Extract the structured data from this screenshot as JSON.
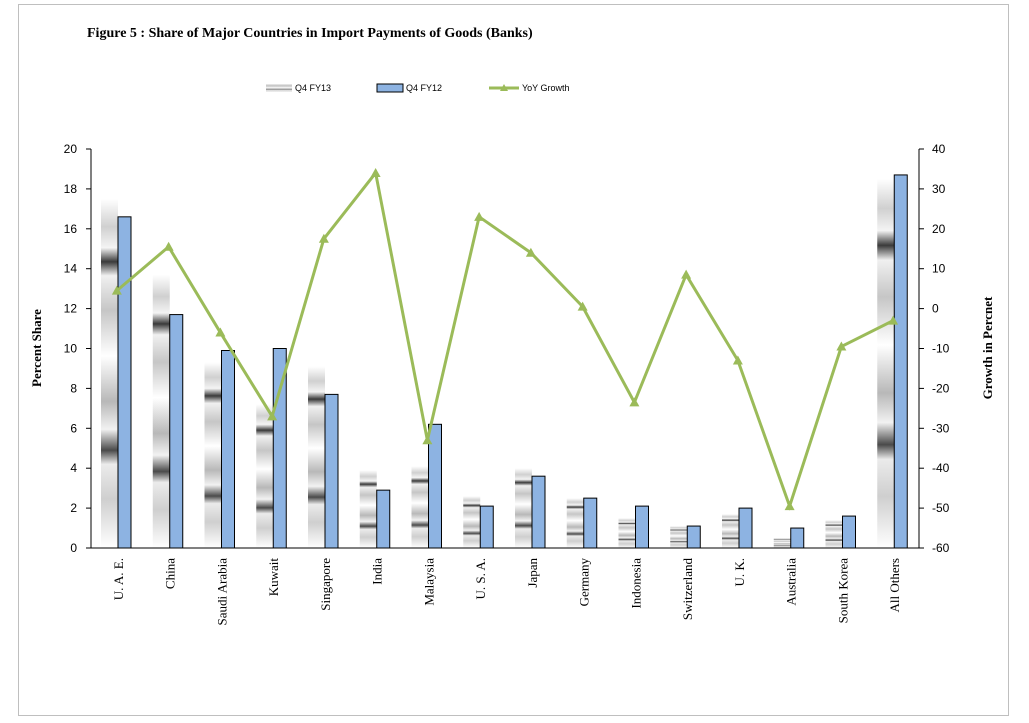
{
  "chart_data": {
    "type": "bar",
    "title": "Figure  5 :  Share of Major Countries in Import Payments of Goods (Banks)",
    "categories": [
      "U. A. E.",
      "China",
      "Saudi Arabia",
      "Kuwait",
      "Singapore",
      "India",
      "Malaysia",
      "U. S. A.",
      "Japan",
      "Germany",
      "Indonesia",
      "Switzerland",
      "U. K.",
      "Australia",
      "South Korea",
      "All Others"
    ],
    "series": [
      {
        "name": "Q4 FY13",
        "axis": "left",
        "kind": "bar",
        "color": "#9e9e9e",
        "values": [
          17.5,
          13.7,
          9.3,
          7.2,
          9.1,
          3.9,
          4.1,
          2.6,
          4.0,
          2.5,
          1.5,
          1.1,
          1.7,
          0.5,
          1.4,
          18.5
        ]
      },
      {
        "name": "Q4 FY12",
        "axis": "left",
        "kind": "bar",
        "color": "#8db3e2",
        "values": [
          16.6,
          11.7,
          9.9,
          10.0,
          7.7,
          2.9,
          6.2,
          2.1,
          3.6,
          2.5,
          2.1,
          1.1,
          2.0,
          1.0,
          1.6,
          18.7
        ]
      },
      {
        "name": "YoY Growth",
        "axis": "right",
        "kind": "line",
        "color": "#9bbb59",
        "values": [
          4.5,
          15.5,
          -6.0,
          -27.0,
          17.5,
          34.0,
          -33.0,
          23.0,
          14.0,
          0.5,
          -23.5,
          8.5,
          -13.0,
          -49.5,
          -9.5,
          -3.0
        ]
      }
    ],
    "ylabel": "Percent Share",
    "ylim": [
      0,
      20
    ],
    "yticks": [
      0,
      2,
      4,
      6,
      8,
      10,
      12,
      14,
      16,
      18,
      20
    ],
    "y2label": "Growth in Percnet",
    "y2lim": [
      -60,
      40
    ],
    "y2ticks": [
      -60,
      -50,
      -40,
      -30,
      -20,
      -10,
      0,
      10,
      20,
      30,
      40
    ],
    "legend_position": "top",
    "grid": false
  }
}
